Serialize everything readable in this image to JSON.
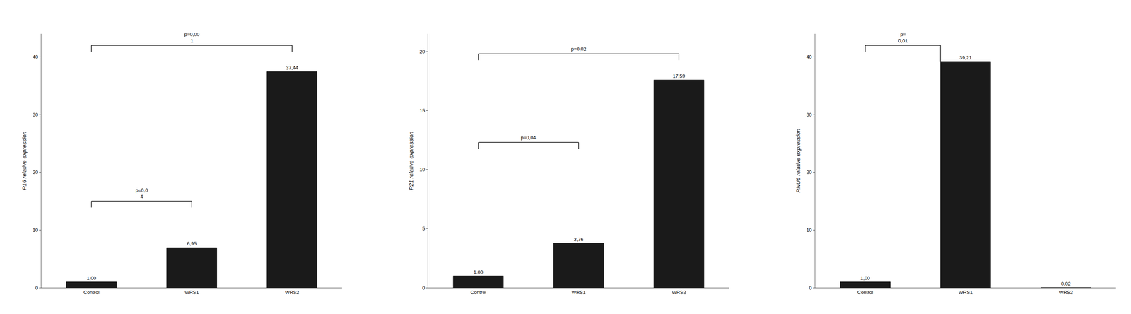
{
  "chart_data": [
    {
      "type": "bar",
      "ylabel": "P16 relative expression",
      "categories": [
        "Control",
        "WRS1",
        "WRS2"
      ],
      "values": [
        1.0,
        6.95,
        37.44
      ],
      "value_labels": [
        "1,00",
        "6,95",
        "37,44"
      ],
      "color": "#1a1a1a",
      "data_labels": true,
      "grid": false,
      "ylim": [
        0,
        44
      ],
      "yticks": [
        0,
        10,
        20,
        30,
        40
      ],
      "brackets": [
        {
          "from": "Control",
          "to": "WRS1",
          "y": 15.0,
          "label": "p=0,0\n4"
        },
        {
          "from": "Control",
          "to": "WRS2",
          "y": 42.0,
          "label": "p=0,00\n1"
        }
      ]
    },
    {
      "type": "bar",
      "ylabel": "P21 relative expression",
      "categories": [
        "Control",
        "WRS1",
        "WRS2"
      ],
      "values": [
        1.0,
        3.76,
        17.59
      ],
      "value_labels": [
        "1,00",
        "3,76",
        "17,59"
      ],
      "color": "#1a1a1a",
      "data_labels": true,
      "grid": false,
      "ylim": [
        0,
        21.5
      ],
      "yticks": [
        0,
        5,
        10,
        15,
        20
      ],
      "brackets": [
        {
          "from": "Control",
          "to": "WRS1",
          "y": 12.3,
          "label": "p=0,04"
        },
        {
          "from": "Control",
          "to": "WRS2",
          "y": 19.8,
          "label": "p=0,02"
        }
      ]
    },
    {
      "type": "bar",
      "ylabel": "RNU6 relative expression",
      "categories": [
        "Control",
        "WRS1",
        "WRS2"
      ],
      "values": [
        1.0,
        39.21,
        0.02
      ],
      "value_labels": [
        "1,00",
        "39,21",
        "0,02"
      ],
      "color": "#1a1a1a",
      "data_labels": true,
      "grid": false,
      "ylim": [
        0,
        44
      ],
      "yticks": [
        0,
        10,
        20,
        30,
        40
      ],
      "brackets": [
        {
          "from": "Control",
          "to": "WRS1",
          "y": 42.0,
          "label": "p=\n0,01",
          "right_y": 39.21
        }
      ]
    }
  ]
}
